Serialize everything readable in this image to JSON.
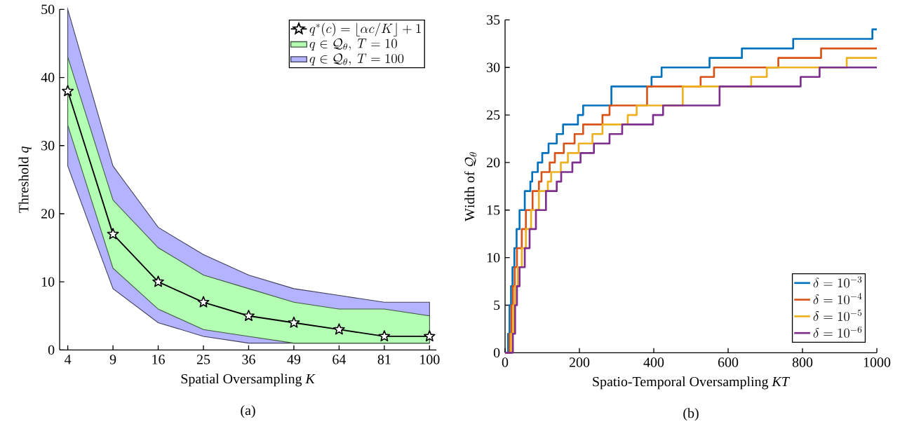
{
  "chart_data": [
    {
      "type": "line",
      "xlabel": "Spatial Oversampling *K*",
      "ylabel": "Threshold *q*",
      "categories": [
        "4",
        "9",
        "16",
        "25",
        "36",
        "49",
        "64",
        "81",
        "100"
      ],
      "ylim": [
        0,
        50
      ],
      "yticks": [
        0,
        10,
        20,
        30,
        40,
        50
      ],
      "legend": "top right",
      "annotations": [
        "(a)"
      ],
      "series": [
        {
          "name": "q^*(c) = \\lfloor \\alpha c/K \\rfloor + 1",
          "color": "#000000",
          "marker": "star",
          "values": [
            38,
            17,
            10,
            7,
            5,
            4,
            3,
            2,
            2
          ]
        },
        {
          "name": "q \\in \\mathcal{Q}_\\theta,\\ T = 10",
          "color": "#b3ffb3",
          "values": [
            null,
            null,
            null,
            null,
            null,
            null,
            null,
            null,
            null
          ],
          "lower": [
            33,
            12,
            6,
            3,
            2,
            1,
            1,
            1,
            1
          ],
          "upper": [
            43,
            22,
            15,
            11,
            9,
            7,
            6,
            6,
            5
          ]
        },
        {
          "name": "q \\in \\mathcal{Q}_\\theta,\\ T = 100",
          "color": "#b3b3ff",
          "values": [
            null,
            null,
            null,
            null,
            null,
            null,
            null,
            null,
            null
          ],
          "lower": [
            27,
            9,
            4,
            2,
            1,
            1,
            1,
            1,
            1
          ],
          "upper": [
            50,
            27,
            18,
            14,
            11,
            9,
            8,
            7,
            7
          ]
        }
      ]
    },
    {
      "type": "step",
      "xlabel": "Spatio-Temporal Oversampling *KT*",
      "ylabel": "\\mathrm{Width\\ of\\ }\\mathcal{Q}_\\theta",
      "xlim": [
        0,
        1000
      ],
      "xticks": [
        0,
        200,
        400,
        600,
        800,
        1000
      ],
      "ylim": [
        0,
        35
      ],
      "yticks": [
        0,
        5,
        10,
        15,
        20,
        25,
        30,
        35
      ],
      "legend": "bottom right",
      "annotations": [
        "(b)"
      ],
      "series": [
        {
          "name": "\\delta = 10^{-3}",
          "color": "#0072bd",
          "x": [
            0,
            8,
            12,
            16,
            20,
            25,
            31,
            39,
            53,
            68,
            73,
            88,
            100,
            117,
            139,
            156,
            196,
            210,
            286,
            394,
            421,
            550,
            637,
            775,
            988,
            1000
          ],
          "values": [
            0,
            2,
            5,
            7,
            9,
            11,
            13,
            15,
            17,
            18,
            19,
            20,
            21,
            22,
            23,
            24,
            25,
            26,
            28,
            29,
            30,
            31,
            32,
            33,
            34,
            34
          ]
        },
        {
          "name": "\\delta = 10^{-4}",
          "color": "#d95319",
          "x": [
            0,
            12,
            17,
            21,
            26,
            32,
            45,
            56,
            74,
            91,
            98,
            120,
            134,
            158,
            187,
            210,
            262,
            281,
            382,
            526,
            562,
            735,
            850,
            1000
          ],
          "values": [
            0,
            2,
            5,
            7,
            9,
            11,
            13,
            15,
            17,
            18,
            19,
            20,
            21,
            22,
            23,
            24,
            25,
            26,
            28,
            29,
            30,
            31,
            32,
            32
          ]
        },
        {
          "name": "\\delta = 10^{-5}",
          "color": "#edb120",
          "x": [
            0,
            16,
            22,
            27,
            34,
            45,
            56,
            70,
            91,
            115,
            124,
            150,
            169,
            198,
            235,
            262,
            330,
            354,
            478,
            662,
            704,
            919,
            1000
          ],
          "values": [
            0,
            2,
            5,
            7,
            9,
            11,
            13,
            15,
            17,
            18,
            19,
            20,
            21,
            22,
            23,
            24,
            25,
            26,
            28,
            29,
            30,
            31,
            31
          ]
        },
        {
          "name": "\\delta = 10^{-6}",
          "color": "#7e2f8e",
          "x": [
            0,
            21,
            27,
            32,
            39,
            53,
            66,
            83,
            110,
            139,
            151,
            181,
            203,
            239,
            281,
            315,
            398,
            425,
            577,
            795,
            846,
            1000
          ],
          "values": [
            0,
            2,
            5,
            7,
            9,
            11,
            13,
            15,
            17,
            18,
            19,
            20,
            21,
            22,
            23,
            24,
            25,
            26,
            28,
            29,
            30,
            30
          ]
        }
      ]
    }
  ]
}
